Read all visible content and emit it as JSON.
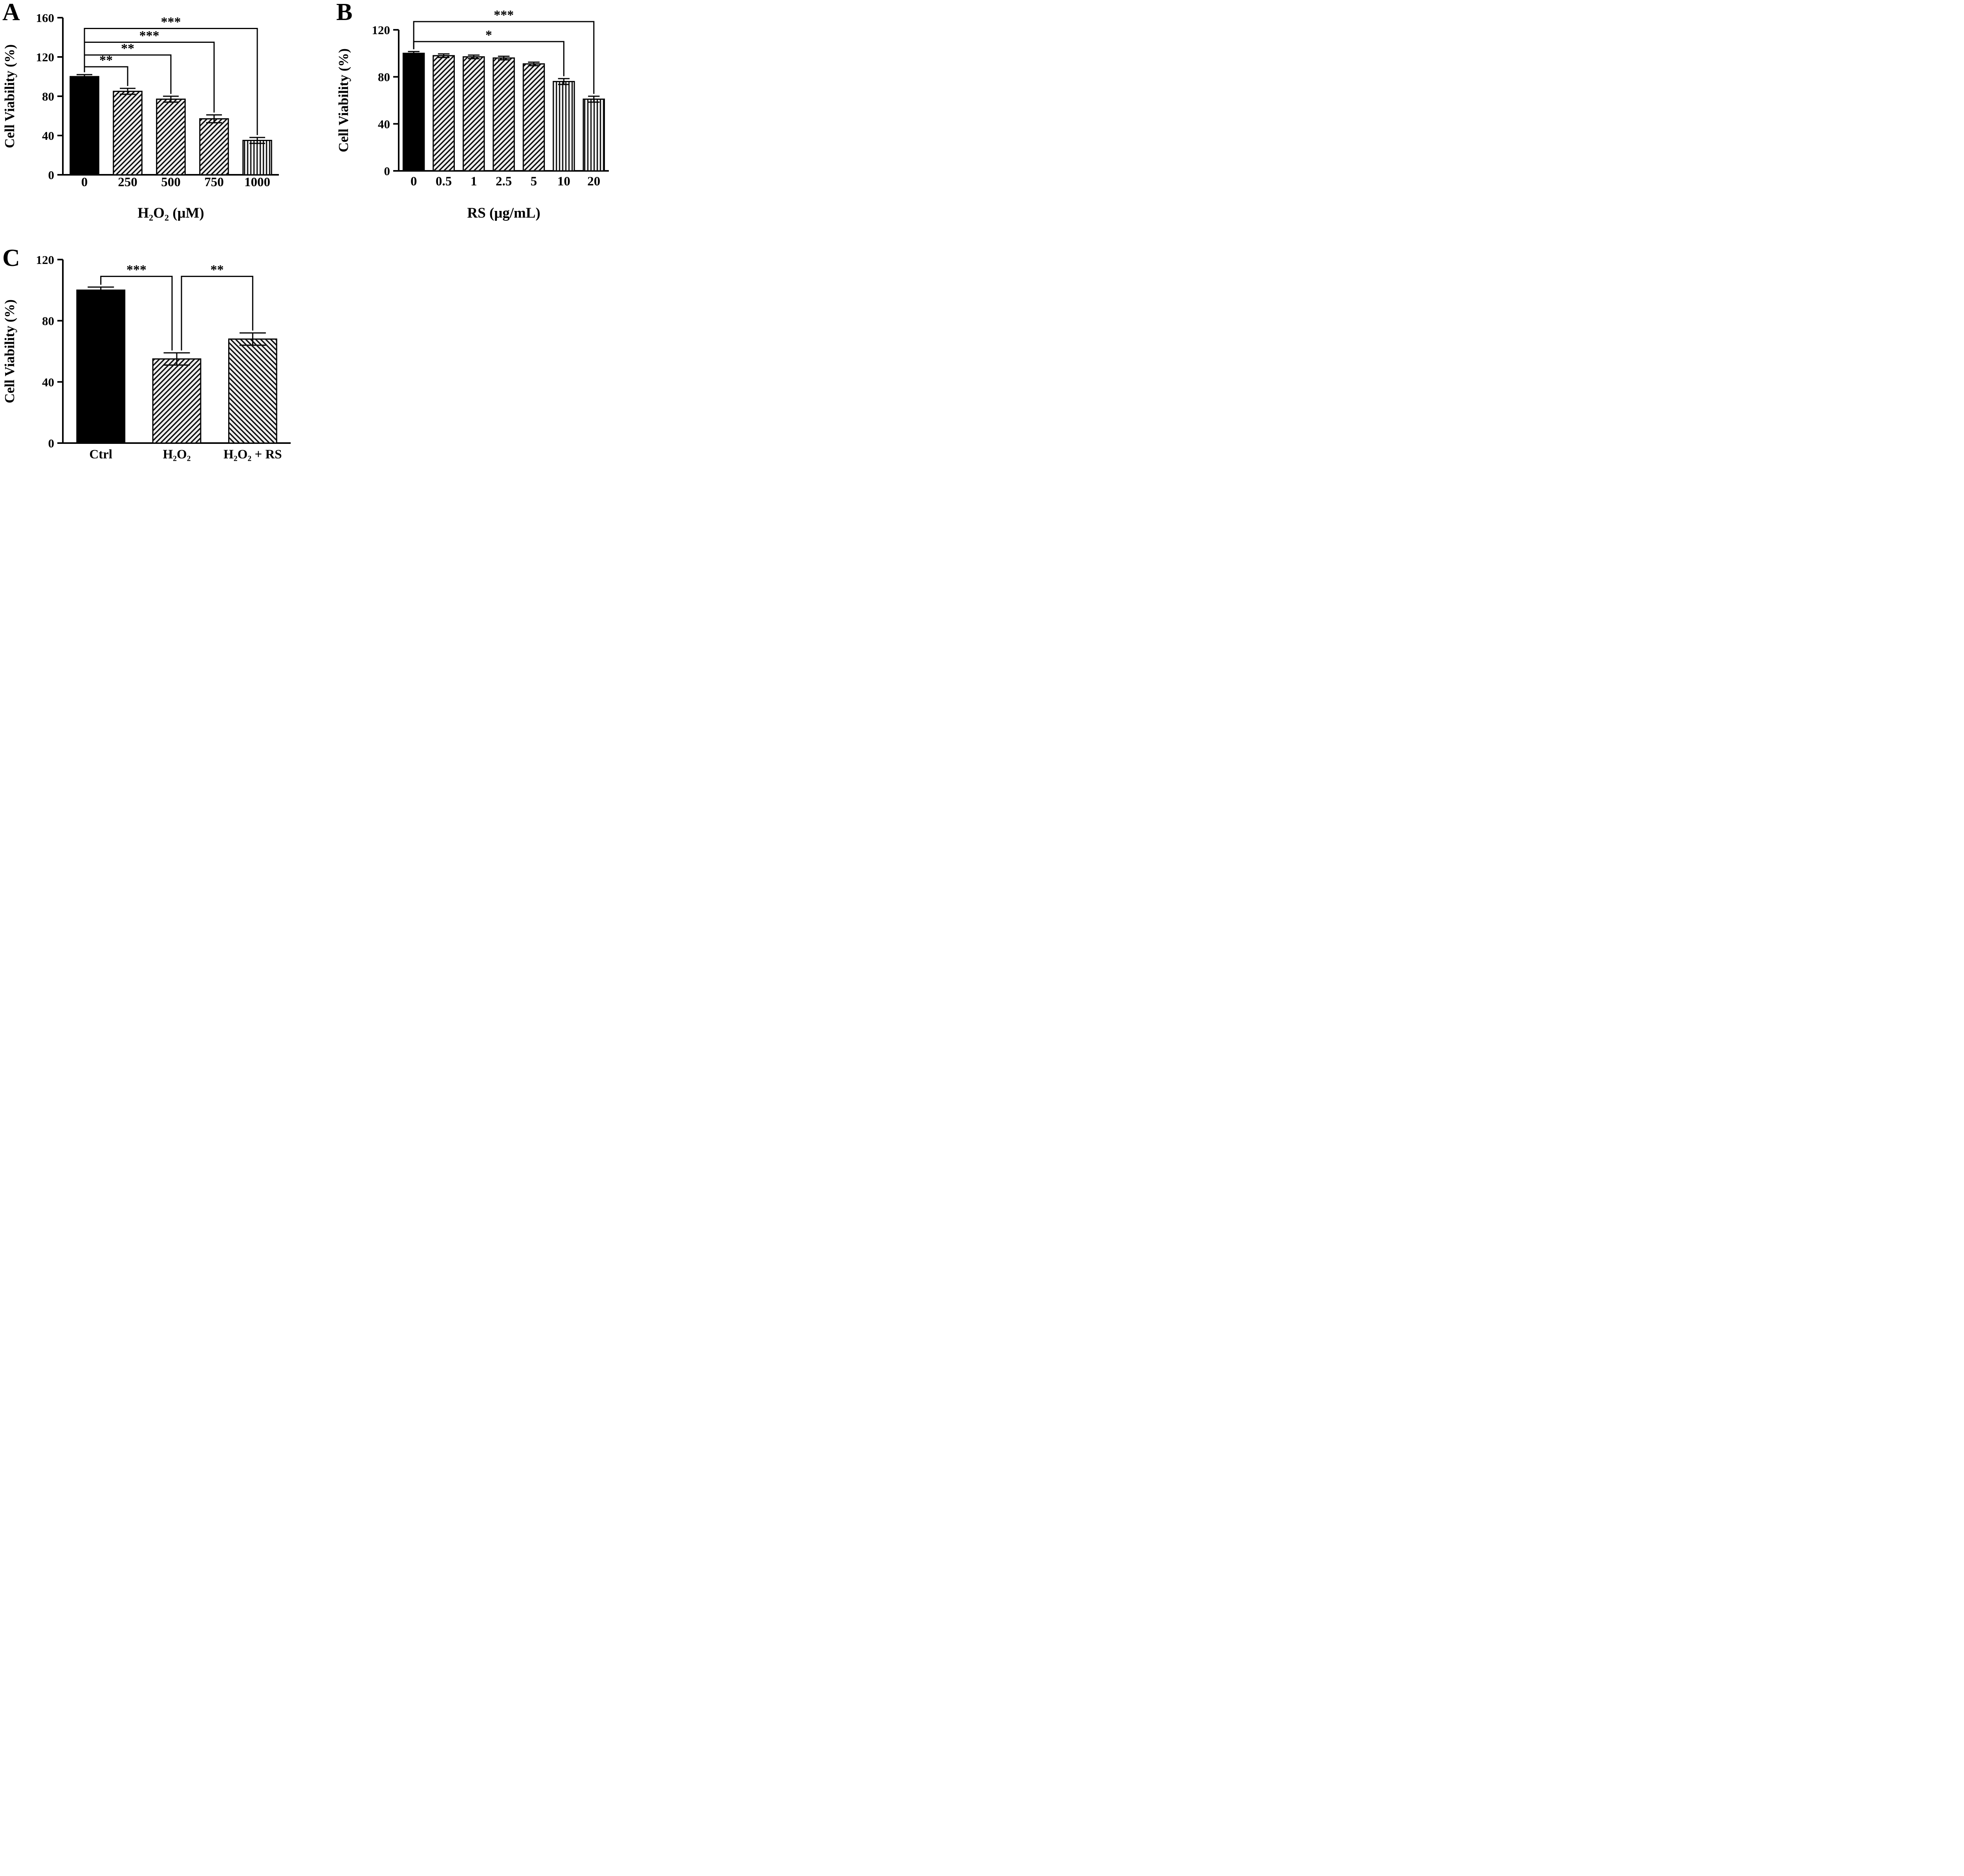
{
  "figure": {
    "background_color": "#ffffff",
    "ink_color": "#000000"
  },
  "chart_data": [
    {
      "panel": "A",
      "type": "bar",
      "ylabel": "Cell Viability (%)",
      "xlabel": "H₂O₂ (μM)",
      "ylim": [
        0,
        160
      ],
      "yticks": [
        0,
        40,
        80,
        120,
        160
      ],
      "categories": [
        "0",
        "250",
        "500",
        "750",
        "1000"
      ],
      "values": [
        100,
        85,
        77,
        57,
        35
      ],
      "errors": [
        2,
        3,
        3,
        4,
        3
      ],
      "bar_styles": [
        "solid-black",
        "diagonal-hatch",
        "diagonal-hatch",
        "diagonal-hatch",
        "vertical-hatch"
      ],
      "grid": false,
      "legend": false,
      "significance": [
        {
          "from": 0,
          "to": 1,
          "label": "**",
          "height": 110
        },
        {
          "from": 0,
          "to": 2,
          "label": "**",
          "height": 122
        },
        {
          "from": 0,
          "to": 3,
          "label": "***",
          "height": 135
        },
        {
          "from": 0,
          "to": 4,
          "label": "***",
          "height": 149
        }
      ]
    },
    {
      "panel": "B",
      "type": "bar",
      "ylabel": "Cell Viability (%)",
      "xlabel": "RS (μg/mL)",
      "ylim": [
        0,
        120
      ],
      "yticks": [
        0,
        40,
        80,
        120
      ],
      "categories": [
        "0",
        "0.5",
        "1",
        "2.5",
        "5",
        "10",
        "20"
      ],
      "values": [
        100,
        98,
        97,
        96,
        91,
        76,
        61
      ],
      "errors": [
        1.5,
        1.5,
        1.5,
        1.5,
        1.5,
        2.5,
        2.5
      ],
      "bar_styles": [
        "solid-black",
        "diagonal-hatch",
        "diagonal-hatch",
        "diagonal-hatch",
        "diagonal-hatch",
        "vertical-hatch",
        "vertical-hatch"
      ],
      "grid": false,
      "legend": false,
      "significance": [
        {
          "from": 0,
          "to": 5,
          "label": "*",
          "height": 110
        },
        {
          "from": 0,
          "to": 6,
          "label": "***",
          "height": 127
        }
      ]
    },
    {
      "panel": "C",
      "type": "bar",
      "ylabel": "Cell Viability (%)",
      "xlabel": "",
      "ylim": [
        0,
        120
      ],
      "yticks": [
        0,
        40,
        80,
        120
      ],
      "categories": [
        "Ctrl",
        "H₂O₂",
        "H₂O₂ + RS"
      ],
      "values": [
        100,
        55,
        68
      ],
      "errors": [
        2,
        4,
        4
      ],
      "bar_styles": [
        "solid-black",
        "diagonal-hatch",
        "diagonal-hatch-reverse"
      ],
      "grid": false,
      "legend": false,
      "significance": [
        {
          "from": 0,
          "to": 1,
          "label": "***",
          "height": 109,
          "dx_to": -12
        },
        {
          "from": 1,
          "to": 2,
          "label": "**",
          "height": 109,
          "dx_from": 12
        }
      ]
    }
  ]
}
